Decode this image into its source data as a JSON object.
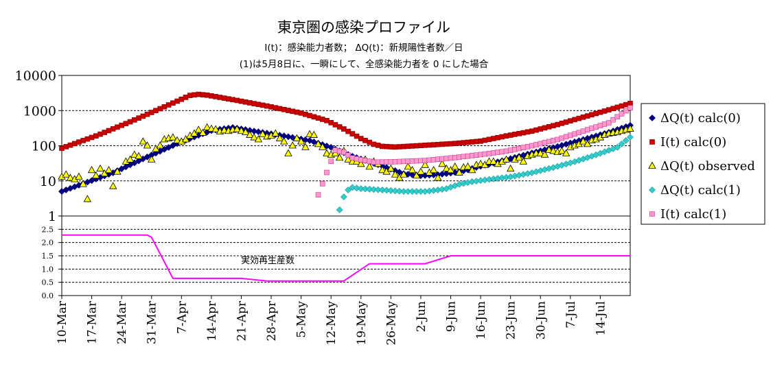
{
  "chart_data": [
    {
      "type": "scatter",
      "title": "東京圏の感染プロファイル",
      "subtitle1": "I(t)：感染能力者数； ΔQ(t)：新規陽性者数／日",
      "subtitle2": "(1)は5月8日に、一瞬にして、全感染能力者を 0 にした場合",
      "yscale": "log",
      "ylim": [
        1,
        10000
      ],
      "yticks": [
        "1",
        "10",
        "100",
        "1000",
        "10000"
      ],
      "grid": true,
      "legend_position": "right",
      "x_ticks": [
        "10-Mar",
        "17-Mar",
        "24-Mar",
        "31-Mar",
        "7-Apr",
        "14-Apr",
        "21-Apr",
        "28-Apr",
        "5-May",
        "12-May",
        "19-May",
        "26-May",
        "2-Jun",
        "9-Jun",
        "16-Jun",
        "23-Jun",
        "30-Jun",
        "7-Jul",
        "14-Jul"
      ],
      "x_range_days": [
        0,
        133
      ],
      "series": [
        {
          "name": "ΔQ(t) calc(0)",
          "color": "#00007f",
          "marker": "diamond",
          "points": [
            [
              0,
              5
            ],
            [
              12,
              17
            ],
            [
              20,
              48
            ],
            [
              28,
              130
            ],
            [
              35,
              270
            ],
            [
              40,
              330
            ],
            [
              45,
              260
            ],
            [
              52,
              190
            ],
            [
              58,
              140
            ],
            [
              63,
              90
            ],
            [
              68,
              50
            ],
            [
              72,
              35
            ],
            [
              76,
              24
            ],
            [
              80,
              16
            ],
            [
              84,
              14
            ],
            [
              88,
              15
            ],
            [
              93,
              18
            ],
            [
              98,
              26
            ],
            [
              104,
              40
            ],
            [
              110,
              62
            ],
            [
              116,
              95
            ],
            [
              122,
              150
            ],
            [
              128,
              240
            ],
            [
              133,
              380
            ]
          ]
        },
        {
          "name": "I(t) calc(0)",
          "color": "#cc0000",
          "marker": "square",
          "points": [
            [
              0,
              85
            ],
            [
              8,
              190
            ],
            [
              16,
              480
            ],
            [
              22,
              1000
            ],
            [
              28,
              2100
            ],
            [
              30,
              2700
            ],
            [
              32,
              2900
            ],
            [
              34,
              2750
            ],
            [
              40,
              2050
            ],
            [
              48,
              1350
            ],
            [
              56,
              850
            ],
            [
              62,
              520
            ],
            [
              66,
              300
            ],
            [
              70,
              160
            ],
            [
              73,
              110
            ],
            [
              75,
              96
            ],
            [
              78,
              92
            ],
            [
              85,
              103
            ],
            [
              92,
              116
            ],
            [
              98,
              135
            ],
            [
              104,
              190
            ],
            [
              110,
              260
            ],
            [
              116,
              400
            ],
            [
              122,
              650
            ],
            [
              128,
              1050
            ],
            [
              133,
              1600
            ]
          ]
        },
        {
          "name": "ΔQ(t) observed",
          "color": "#ffff00",
          "marker": "triangle",
          "points": [
            [
              0,
              13
            ],
            [
              1,
              15
            ],
            [
              2,
              12
            ],
            [
              3,
              11
            ],
            [
              4,
              13
            ],
            [
              5,
              8
            ],
            [
              6,
              3
            ],
            [
              7,
              20
            ],
            [
              8,
              14
            ],
            [
              9,
              22
            ],
            [
              10,
              16
            ],
            [
              11,
              20
            ],
            [
              12,
              7
            ],
            [
              13,
              18
            ],
            [
              15,
              35
            ],
            [
              16,
              40
            ],
            [
              17,
              55
            ],
            [
              18,
              50
            ],
            [
              19,
              130
            ],
            [
              20,
              100
            ],
            [
              21,
              40
            ],
            [
              22,
              80
            ],
            [
              23,
              100
            ],
            [
              24,
              150
            ],
            [
              25,
              160
            ],
            [
              26,
              170
            ],
            [
              27,
              140
            ],
            [
              28,
              130
            ],
            [
              29,
              150
            ],
            [
              30,
              190
            ],
            [
              31,
              220
            ],
            [
              32,
              280
            ],
            [
              33,
              230
            ],
            [
              34,
              330
            ],
            [
              35,
              300
            ],
            [
              36,
              290
            ],
            [
              37,
              250
            ],
            [
              38,
              270
            ],
            [
              39,
              260
            ],
            [
              40,
              280
            ],
            [
              41,
              290
            ],
            [
              42,
              260
            ],
            [
              43,
              240
            ],
            [
              44,
              200
            ],
            [
              45,
              170
            ],
            [
              46,
              150
            ],
            [
              47,
              210
            ],
            [
              48,
              180
            ],
            [
              49,
              190
            ],
            [
              50,
              220
            ],
            [
              51,
              160
            ],
            [
              52,
              130
            ],
            [
              53,
              60
            ],
            [
              54,
              100
            ],
            [
              55,
              160
            ],
            [
              56,
              130
            ],
            [
              57,
              90
            ],
            [
              58,
              210
            ],
            [
              59,
              200
            ],
            [
              60,
              110
            ],
            [
              61,
              90
            ],
            [
              62,
              60
            ],
            [
              63,
              55
            ],
            [
              64,
              60
            ],
            [
              65,
              45
            ],
            [
              66,
              70
            ],
            [
              67,
              40
            ],
            [
              68,
              35
            ],
            [
              69,
              35
            ],
            [
              70,
              30
            ],
            [
              71,
              40
            ],
            [
              72,
              25
            ],
            [
              73,
              35
            ],
            [
              74,
              30
            ],
            [
              75,
              20
            ],
            [
              76,
              18
            ],
            [
              77,
              22
            ],
            [
              78,
              15
            ],
            [
              79,
              12
            ],
            [
              80,
              15
            ],
            [
              81,
              25
            ],
            [
              82,
              20
            ],
            [
              83,
              14
            ],
            [
              84,
              18
            ],
            [
              85,
              28
            ],
            [
              86,
              17
            ],
            [
              87,
              20
            ],
            [
              88,
              12
            ],
            [
              89,
              30
            ],
            [
              90,
              22
            ],
            [
              91,
              20
            ],
            [
              92,
              25
            ],
            [
              93,
              17
            ],
            [
              94,
              24
            ],
            [
              95,
              25
            ],
            [
              96,
              20
            ],
            [
              97,
              28
            ],
            [
              98,
              30
            ],
            [
              99,
              28
            ],
            [
              100,
              35
            ],
            [
              101,
              35
            ],
            [
              102,
              30
            ],
            [
              103,
              35
            ],
            [
              104,
              40
            ],
            [
              105,
              22
            ],
            [
              106,
              40
            ],
            [
              107,
              45
            ],
            [
              108,
              35
            ],
            [
              109,
              50
            ],
            [
              110,
              55
            ],
            [
              111,
              60
            ],
            [
              112,
              60
            ],
            [
              113,
              55
            ],
            [
              114,
              75
            ],
            [
              115,
              70
            ],
            [
              116,
              65
            ],
            [
              117,
              70
            ],
            [
              118,
              60
            ],
            [
              119,
              90
            ],
            [
              120,
              100
            ],
            [
              121,
              110
            ],
            [
              122,
              130
            ],
            [
              123,
              110
            ],
            [
              124,
              140
            ],
            [
              125,
              150
            ],
            [
              126,
              170
            ],
            [
              127,
              200
            ],
            [
              128,
              220
            ],
            [
              129,
              230
            ],
            [
              130,
              240
            ],
            [
              131,
              260
            ],
            [
              132,
              280
            ],
            [
              133,
              300
            ]
          ]
        },
        {
          "name": "ΔQ(t) calc(1)",
          "color": "#33cccc",
          "marker": "diamond",
          "points": [
            [
              65,
              1.5
            ],
            [
              66,
              3.5
            ],
            [
              67,
              5.5
            ],
            [
              68,
              6.5
            ],
            [
              70,
              6
            ],
            [
              75,
              5.5
            ],
            [
              80,
              5
            ],
            [
              85,
              5
            ],
            [
              88,
              5.5
            ],
            [
              90,
              6
            ],
            [
              93,
              8
            ],
            [
              96,
              9.5
            ],
            [
              100,
              11
            ],
            [
              105,
              13
            ],
            [
              110,
              17
            ],
            [
              115,
              24
            ],
            [
              120,
              35
            ],
            [
              125,
              55
            ],
            [
              130,
              90
            ],
            [
              133,
              175
            ]
          ]
        },
        {
          "name": "I(t) calc(1)",
          "color": "#ff99cc",
          "marker": "square",
          "points": [
            [
              60,
              4
            ],
            [
              64,
              75
            ],
            [
              66,
              65
            ],
            [
              68,
              45
            ],
            [
              70,
              40
            ],
            [
              73,
              34
            ],
            [
              78,
              35
            ],
            [
              85,
              38
            ],
            [
              92,
              46
            ],
            [
              98,
              56
            ],
            [
              104,
              70
            ],
            [
              110,
              100
            ],
            [
              116,
              150
            ],
            [
              122,
              260
            ],
            [
              128,
              450
            ],
            [
              133,
              1200
            ]
          ]
        }
      ]
    },
    {
      "type": "line",
      "ylim": [
        0,
        3
      ],
      "yticks": [
        "0.0",
        "0.5",
        "1.0",
        "1.5",
        "2.0",
        "2.5"
      ],
      "annotation": "実効再生産数",
      "series": [
        {
          "name": "",
          "color": "#ff00ff",
          "points": [
            [
              0,
              2.28
            ],
            [
              20,
              2.28
            ],
            [
              21,
              2.2
            ],
            [
              26,
              0.65
            ],
            [
              42,
              0.65
            ],
            [
              48,
              0.55
            ],
            [
              66,
              0.55
            ],
            [
              72,
              1.2
            ],
            [
              85,
              1.2
            ],
            [
              91,
              1.5
            ],
            [
              133,
              1.5
            ]
          ]
        }
      ]
    }
  ]
}
